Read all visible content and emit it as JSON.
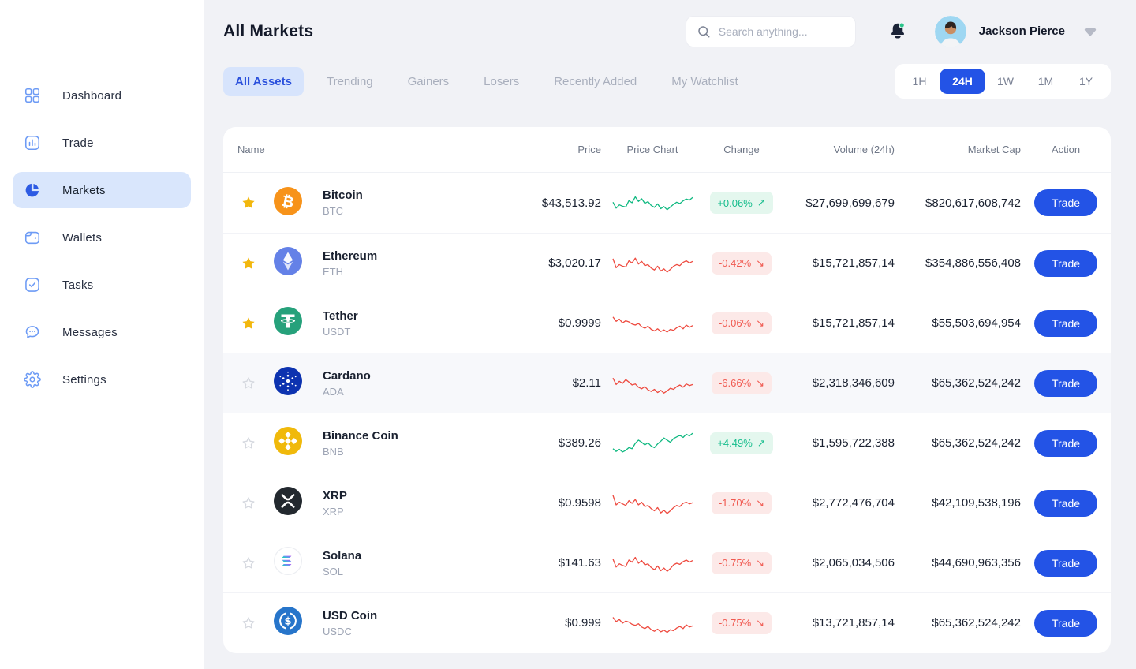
{
  "sidebar": {
    "items": [
      {
        "label": "Dashboard",
        "icon": "dashboard",
        "active": false
      },
      {
        "label": "Trade",
        "icon": "trade",
        "active": false
      },
      {
        "label": "Markets",
        "icon": "markets",
        "active": true
      },
      {
        "label": "Wallets",
        "icon": "wallets",
        "active": false
      },
      {
        "label": "Tasks",
        "icon": "tasks",
        "active": false
      },
      {
        "label": "Messages",
        "icon": "messages",
        "active": false
      },
      {
        "label": "Settings",
        "icon": "settings",
        "active": false
      }
    ]
  },
  "header": {
    "title": "All Markets",
    "search_placeholder": "Search anything...",
    "user_name": "Jackson Pierce",
    "notification_dot": true
  },
  "tabs": [
    {
      "label": "All Assets",
      "active": true
    },
    {
      "label": "Trending",
      "active": false
    },
    {
      "label": "Gainers",
      "active": false
    },
    {
      "label": "Losers",
      "active": false
    },
    {
      "label": "Recently Added",
      "active": false
    },
    {
      "label": "My Watchlist",
      "active": false
    }
  ],
  "time_filters": [
    {
      "label": "1H",
      "active": false
    },
    {
      "label": "24H",
      "active": true
    },
    {
      "label": "1W",
      "active": false
    },
    {
      "label": "1M",
      "active": false
    },
    {
      "label": "1Y",
      "active": false
    }
  ],
  "table": {
    "columns": [
      "Name",
      "Price",
      "Price Chart",
      "Change",
      "Volume (24h)",
      "Market Cap",
      "Action"
    ],
    "action_label": "Trade",
    "rows": [
      {
        "name": "Bitcoin",
        "symbol": "BTC",
        "icon": "btc",
        "starred": true,
        "highlighted": false,
        "price": "$43,513.92",
        "change": "+0.06%",
        "trend": "up",
        "volume": "$27,699,699,679",
        "market_cap": "$820,617,608,742",
        "spark": [
          52,
          30,
          42,
          37,
          34,
          58,
          50,
          72,
          55,
          65,
          48,
          54,
          40,
          33,
          46,
          28,
          36,
          24,
          34,
          44,
          52,
          47,
          57,
          64,
          60,
          70
        ]
      },
      {
        "name": "Ethereum",
        "symbol": "ETH",
        "icon": "eth",
        "starred": true,
        "highlighted": false,
        "price": "$3,020.17",
        "change": "-0.42%",
        "trend": "down",
        "volume": "$15,721,857,14",
        "market_cap": "$354,886,556,408",
        "spark": [
          68,
          34,
          46,
          40,
          37,
          60,
          52,
          70,
          48,
          58,
          42,
          46,
          33,
          26,
          40,
          22,
          30,
          18,
          28,
          40,
          46,
          42,
          54,
          60,
          52,
          58
        ]
      },
      {
        "name": "Tether",
        "symbol": "USDT",
        "icon": "usdt",
        "starred": true,
        "highlighted": false,
        "price": "$0.9999",
        "change": "-0.06%",
        "trend": "down",
        "volume": "$15,721,857,14",
        "market_cap": "$55,503,694,954",
        "spark": [
          74,
          58,
          66,
          52,
          60,
          56,
          48,
          44,
          50,
          38,
          32,
          40,
          28,
          22,
          30,
          20,
          26,
          18,
          28,
          24,
          34,
          40,
          30,
          44,
          36,
          42
        ]
      },
      {
        "name": "Cardano",
        "symbol": "ADA",
        "icon": "ada",
        "starred": false,
        "highlighted": true,
        "price": "$2.11",
        "change": "-6.66%",
        "trend": "down",
        "volume": "$2,318,346,609",
        "market_cap": "$65,362,524,242",
        "spark": [
          70,
          46,
          58,
          50,
          64,
          55,
          44,
          48,
          36,
          30,
          38,
          26,
          20,
          28,
          16,
          24,
          14,
          22,
          32,
          28,
          38,
          44,
          36,
          48,
          42,
          46
        ]
      },
      {
        "name": "Binance Coin",
        "symbol": "BNB",
        "icon": "bnb",
        "starred": false,
        "highlighted": false,
        "price": "$389.26",
        "change": "+4.49%",
        "trend": "up",
        "volume": "$1,595,722,388",
        "market_cap": "$65,362,524,242",
        "spark": [
          30,
          20,
          28,
          18,
          24,
          34,
          30,
          50,
          62,
          54,
          44,
          52,
          40,
          34,
          48,
          58,
          70,
          62,
          54,
          68,
          74,
          80,
          72,
          84,
          78,
          88
        ]
      },
      {
        "name": "XRP",
        "symbol": "XRP",
        "icon": "xrp",
        "starred": false,
        "highlighted": false,
        "price": "$0.9598",
        "change": "-1.70%",
        "trend": "down",
        "volume": "$2,772,476,704",
        "market_cap": "$42,109,538,196",
        "spark": [
          80,
          44,
          54,
          48,
          42,
          60,
          50,
          64,
          44,
          54,
          38,
          42,
          30,
          22,
          34,
          14,
          24,
          12,
          22,
          34,
          42,
          38,
          50,
          54,
          48,
          52
        ]
      },
      {
        "name": "Solana",
        "symbol": "SOL",
        "icon": "sol",
        "starred": false,
        "highlighted": false,
        "price": "$141.63",
        "change": "-0.75%",
        "trend": "down",
        "volume": "$2,065,034,506",
        "market_cap": "$44,690,963,356",
        "spark": [
          66,
          36,
          48,
          42,
          38,
          62,
          54,
          72,
          50,
          60,
          44,
          48,
          34,
          26,
          40,
          22,
          32,
          20,
          30,
          44,
          50,
          46,
          56,
          62,
          54,
          60
        ]
      },
      {
        "name": "USD Coin",
        "symbol": "USDC",
        "icon": "usdc",
        "starred": false,
        "highlighted": false,
        "price": "$0.999",
        "change": "-0.75%",
        "trend": "down",
        "volume": "$13,721,857,14",
        "market_cap": "$65,362,524,242",
        "spark": [
          72,
          56,
          64,
          50,
          58,
          54,
          46,
          42,
          48,
          36,
          30,
          38,
          26,
          20,
          28,
          18,
          24,
          16,
          26,
          22,
          32,
          38,
          30,
          44,
          36,
          40
        ]
      }
    ]
  },
  "colors": {
    "accent_blue": "#2353E6",
    "active_tab_bg": "#D7E4FC",
    "sidebar_active_bg": "#D9E6FC",
    "positive_text": "#17BD8D",
    "positive_bg": "#E4F7EE",
    "negative_text": "#F05A51",
    "negative_bg": "#FCE9E8",
    "spark_up": "#10B981",
    "spark_down": "#EE4B40",
    "star_filled": "#F2B70D",
    "page_bg": "#F1F2F6"
  },
  "icons": {
    "up_arrow": "↗",
    "down_arrow": "↘"
  }
}
